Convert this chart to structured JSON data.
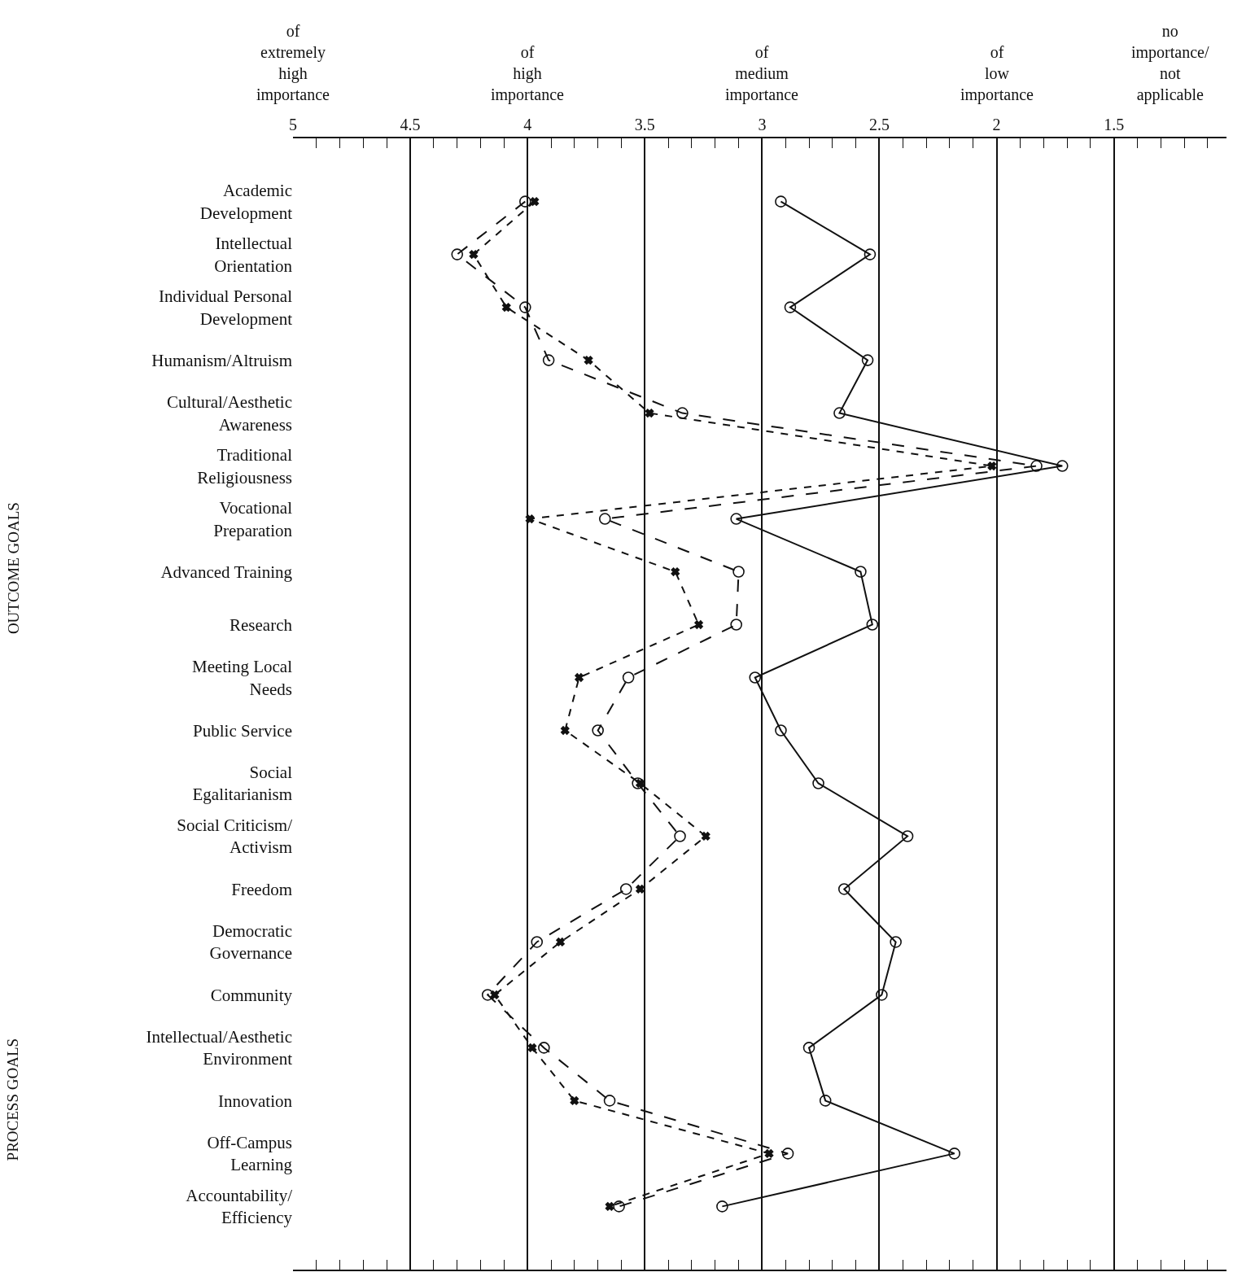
{
  "chart_data": {
    "type": "line",
    "orientation": "horizontal",
    "categories": [
      "Academic\nDevelopment",
      "Intellectual\nOrientation",
      "Individual Personal\nDevelopment",
      "Humanism/Altruism",
      "Cultural/Aesthetic\nAwareness",
      "Traditional\nReligiousness",
      "Vocational\nPreparation",
      "Advanced Training",
      "Research",
      "Meeting Local\nNeeds",
      "Public Service",
      "Social\nEgalitarianism",
      "Social Criticism/\nActivism",
      "Freedom",
      "Democratic\nGovernance",
      "Community",
      "Intellectual/Aesthetic\nEnvironment",
      "Innovation",
      "Off-Campus\nLearning",
      "Accountability/\nEfficiency"
    ],
    "series": [
      {
        "color": "#111111",
        "line_style": "solid",
        "marker": "circle",
        "values": [
          2.92,
          2.54,
          2.88,
          2.55,
          2.67,
          1.72,
          3.11,
          2.58,
          2.53,
          3.03,
          2.92,
          2.76,
          2.38,
          2.65,
          2.43,
          2.49,
          2.8,
          2.73,
          2.18,
          3.17
        ]
      },
      {
        "color": "#111111",
        "line_style": "longdash",
        "marker": "circle",
        "values": [
          4.01,
          4.3,
          4.01,
          3.91,
          3.34,
          1.83,
          3.67,
          3.1,
          3.11,
          3.57,
          3.7,
          3.53,
          3.35,
          3.58,
          3.96,
          4.17,
          3.93,
          3.65,
          2.89,
          3.61
        ]
      },
      {
        "color": "#111111",
        "line_style": "dashed",
        "marker": "cross",
        "values": [
          3.97,
          4.23,
          4.09,
          3.74,
          3.48,
          2.02,
          3.99,
          3.37,
          3.27,
          3.78,
          3.84,
          3.52,
          3.24,
          3.52,
          3.86,
          4.14,
          3.98,
          3.8,
          2.97,
          3.65
        ]
      }
    ],
    "xlim": [
      5,
      1.02
    ],
    "xticks": [
      5,
      4.5,
      4,
      3.5,
      3,
      2.5,
      2,
      1.5
    ],
    "grid": "x",
    "annotations": [
      "OUTCOME GOALS",
      "PROCESS GOALS",
      "of\nextremely\nhigh\nimportance",
      "of\nhigh\nimportance",
      "of\nmedium\nimportance",
      "of\nlow\nimportance",
      "no\nimportance/\nnot\napplicable"
    ]
  }
}
